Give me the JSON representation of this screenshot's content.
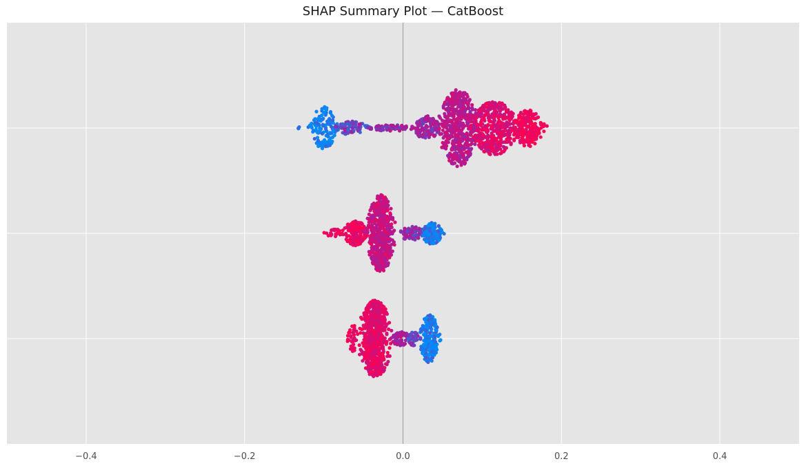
{
  "chart_data": {
    "type": "scatter",
    "subtype": "shap-beeswarm",
    "title": "SHAP Summary Plot — CatBoost",
    "xlabel": "",
    "ylabel": "",
    "xlim": [
      -0.5,
      0.5
    ],
    "xticks": [
      -0.4,
      -0.2,
      0.0,
      0.2,
      0.4
    ],
    "xtick_labels": [
      "−0.4",
      "−0.2",
      "0.0",
      "0.2",
      "0.4"
    ],
    "grid": true,
    "legend": "none",
    "colors": {
      "background": "#e5e5e5",
      "grid": "#ffffff",
      "zero_line": "#999999",
      "low_feature_value": "#008bfb",
      "mid_feature_value": "#a020a0",
      "high_feature_value": "#ff0052"
    },
    "series": [
      {
        "row": 0,
        "clusters": [
          {
            "x_min": -0.132,
            "x_max": -0.115,
            "center": -0.123,
            "width": 0.02,
            "spread": 0.12,
            "count": 6,
            "color_value": 0.0
          },
          {
            "x_min": -0.118,
            "x_max": -0.082,
            "center": -0.1,
            "width": 0.018,
            "spread": 0.55,
            "count": 140,
            "color_value": 0.02
          },
          {
            "x_min": -0.085,
            "x_max": -0.04,
            "center": -0.065,
            "width": 0.025,
            "spread": 0.18,
            "count": 80,
            "color_value": 0.35
          },
          {
            "x_min": -0.045,
            "x_max": 0.015,
            "center": -0.015,
            "width": 0.03,
            "spread": 0.08,
            "count": 70,
            "color_value": 0.5
          },
          {
            "x_min": 0.01,
            "x_max": 0.045,
            "center": 0.03,
            "width": 0.02,
            "spread": 0.32,
            "count": 110,
            "color_value": 0.5
          },
          {
            "x_min": 0.04,
            "x_max": 0.095,
            "center": 0.07,
            "width": 0.022,
            "spread": 1.0,
            "count": 520,
            "color_value": 0.62
          },
          {
            "x_min": 0.085,
            "x_max": 0.15,
            "center": 0.115,
            "width": 0.028,
            "spread": 0.7,
            "count": 420,
            "color_value": 0.82
          },
          {
            "x_min": 0.14,
            "x_max": 0.182,
            "center": 0.158,
            "width": 0.018,
            "spread": 0.48,
            "count": 200,
            "color_value": 0.95
          }
        ]
      },
      {
        "row": 1,
        "clusters": [
          {
            "x_min": -0.1,
            "x_max": -0.075,
            "center": -0.088,
            "width": 0.012,
            "spread": 0.12,
            "count": 25,
            "color_value": 0.95
          },
          {
            "x_min": -0.08,
            "x_max": -0.045,
            "center": -0.06,
            "width": 0.015,
            "spread": 0.32,
            "count": 160,
            "color_value": 0.9
          },
          {
            "x_min": -0.05,
            "x_max": -0.01,
            "center": -0.028,
            "width": 0.014,
            "spread": 1.0,
            "count": 560,
            "color_value": 0.7
          },
          {
            "x_min": -0.01,
            "x_max": 0.028,
            "center": 0.01,
            "width": 0.015,
            "spread": 0.18,
            "count": 90,
            "color_value": 0.45
          },
          {
            "x_min": 0.02,
            "x_max": 0.055,
            "center": 0.037,
            "width": 0.013,
            "spread": 0.28,
            "count": 110,
            "color_value": 0.08
          }
        ]
      },
      {
        "row": 2,
        "clusters": [
          {
            "x_min": -0.07,
            "x_max": -0.055,
            "center": -0.063,
            "width": 0.008,
            "spread": 0.35,
            "count": 40,
            "color_value": 0.97
          },
          {
            "x_min": -0.06,
            "x_max": -0.01,
            "center": -0.035,
            "width": 0.015,
            "spread": 1.0,
            "count": 650,
            "color_value": 0.85
          },
          {
            "x_min": -0.015,
            "x_max": 0.01,
            "center": -0.003,
            "width": 0.012,
            "spread": 0.2,
            "count": 60,
            "color_value": 0.55
          },
          {
            "x_min": 0.005,
            "x_max": 0.022,
            "center": 0.013,
            "width": 0.01,
            "spread": 0.18,
            "count": 40,
            "color_value": 0.35
          },
          {
            "x_min": 0.02,
            "x_max": 0.048,
            "center": 0.033,
            "width": 0.01,
            "spread": 0.62,
            "count": 220,
            "color_value": 0.05
          }
        ]
      }
    ]
  }
}
